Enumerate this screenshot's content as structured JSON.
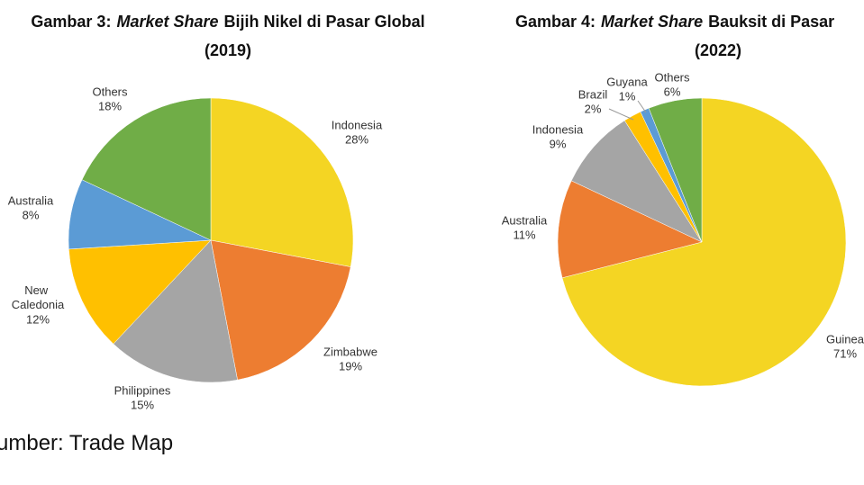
{
  "chart_data": [
    {
      "type": "pie",
      "title": "Gambar 3:",
      "title_italic": "Market Share",
      "title_rest": "Bijih Nikel di Pasar Global",
      "subtitle": "(2019)",
      "categories": [
        "Indonesia",
        "Zimbabwe",
        "Philippines",
        "New Caledonia",
        "Australia",
        "Others"
      ],
      "values": [
        28,
        19,
        15,
        12,
        8,
        18
      ],
      "value_labels": [
        "28%",
        "19%",
        "15%",
        "12%",
        "8%",
        "18%"
      ],
      "colors": [
        "#f4d523",
        "#ed7d31",
        "#a5a5a5",
        "#ffc000",
        "#5b9bd5",
        "#70ad47"
      ]
    },
    {
      "type": "pie",
      "title": "Gambar 4:",
      "title_italic": "Market Share",
      "title_rest": "Bauksit di Pasar",
      "subtitle": "(2022)",
      "categories": [
        "Guinea",
        "Australia",
        "Indonesia",
        "Brazil",
        "Guyana",
        "Others"
      ],
      "values": [
        71,
        11,
        9,
        2,
        1,
        6
      ],
      "value_labels": [
        "71%",
        "11%",
        "9%",
        "2%",
        "1%",
        "6%"
      ],
      "colors": [
        "#f4d523",
        "#ed7d31",
        "#a5a5a5",
        "#ffc000",
        "#5b9bd5",
        "#70ad47"
      ]
    }
  ],
  "source": "umber: Trade Map"
}
